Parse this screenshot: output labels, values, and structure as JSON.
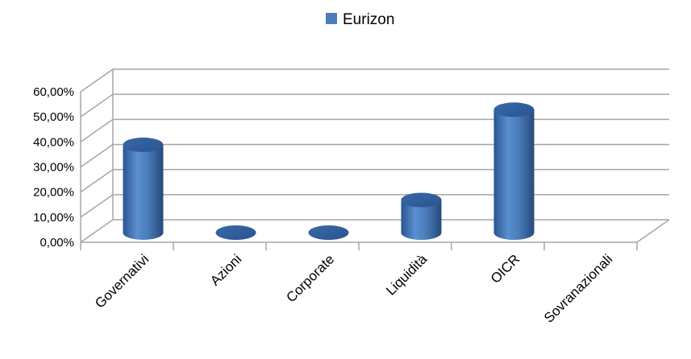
{
  "chart_data": {
    "type": "bar",
    "categories": [
      "Governativi",
      "Azioni",
      "Corporate",
      "Liquidità",
      "OICR",
      "Sovranazionali"
    ],
    "series": [
      {
        "name": "Eurizon",
        "values": [
          0.35,
          0.0,
          0.0,
          0.13,
          0.49,
          null
        ]
      }
    ],
    "yticks": [
      "0,00%",
      "10,00%",
      "20,00%",
      "30,00%",
      "40,00%",
      "50,00%",
      "60,00%"
    ],
    "ylim": [
      0,
      0.6
    ],
    "grid": true,
    "legend_position": "top",
    "colors": {
      "bar": "#4a7ebb",
      "bar_dark": "#2f5a92",
      "bar_light": "#7aa3d6",
      "grid": "#a6a6a6"
    }
  }
}
